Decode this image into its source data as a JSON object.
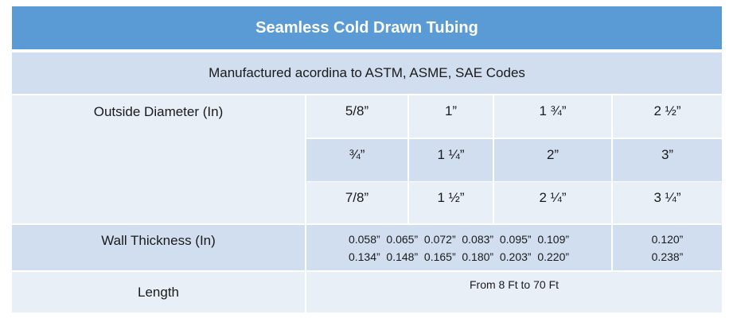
{
  "title": "Seamless Cold Drawn Tubing",
  "subtitle": "Manufactured acordina to ASTM, ASME, SAE Codes",
  "outside_diameter": {
    "label": "Outside Diameter (In)",
    "rows": [
      [
        "5/8”",
        "1”",
        "1 ¾”",
        "2 ½”"
      ],
      [
        "¾”",
        "1 ¼”",
        "2”",
        "3”"
      ],
      [
        "7/8”",
        "1 ½”",
        "2 ¼”",
        "3 ¼”"
      ]
    ]
  },
  "wall_thickness": {
    "label": "Wall Thickness (In)",
    "lines": [
      "0.058”  0.065”  0.072”  0.083”  0.095”  0.109”",
      "0.134”  0.148”  0.165”  0.180”  0.203”  0.220”"
    ],
    "extra": [
      "0.120”",
      "0.238”"
    ]
  },
  "length": {
    "label": "Length",
    "value": "From 8 Ft to 70 Ft"
  }
}
